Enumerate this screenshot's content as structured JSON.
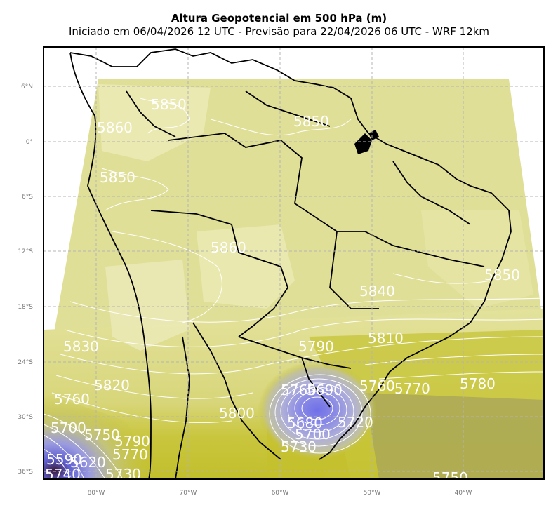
{
  "title": "Altura Geopotencial em 500 hPa (m)",
  "subtitle": "Iniciado em 06/04/2026 12 UTC - Previsão para 22/04/2026 06 UTC - WRF 12km",
  "lat_ticks": [
    "6°N",
    "0°",
    "6°S",
    "12°S",
    "18°S",
    "24°S",
    "30°S",
    "36°S"
  ],
  "lon_ticks": [
    "80°W",
    "70°W",
    "60°W",
    "50°W",
    "40°W"
  ],
  "contour_labels": {
    "n1": "5850",
    "n2": "5860",
    "n3": "5850",
    "n4": "5850",
    "c1": "5860",
    "c2": "5840",
    "c3": "5850",
    "s1": "5830",
    "s2": "5810",
    "s3": "5790",
    "w1": "5820",
    "w2": "5760",
    "w3": "5700",
    "w4": "5750",
    "w5": "5790",
    "w6": "5770",
    "m1": "5800",
    "m2": "5760",
    "m3": "5690",
    "m4": "5760",
    "m5": "5770",
    "m6": "5780",
    "l1": "5680",
    "l2": "5720",
    "l3": "5700",
    "l4": "5730",
    "l5": "5750",
    "sw1": "5590",
    "sw2": "5620",
    "sw3": "5740",
    "sw4": "5730"
  },
  "colors": {
    "frame": "#000000",
    "grid": "#b0b0b0",
    "pale": "#ecebb0",
    "light": "#e3e29c",
    "mid": "#d8d67a",
    "olive": "#c7c435",
    "dark_olive": "#a8a637",
    "gray_olive": "#a09d5a",
    "low_blue": "#8080e8",
    "contour": "#ffffff"
  }
}
